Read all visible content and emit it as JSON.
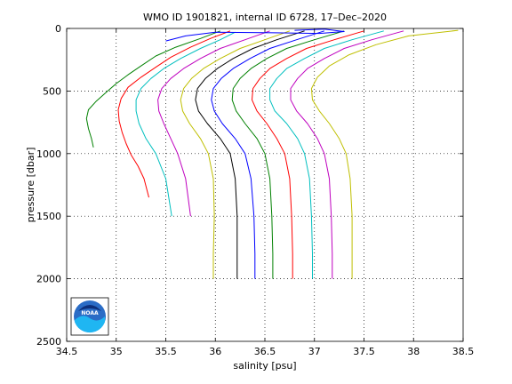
{
  "chart_data": {
    "type": "line",
    "title": "WMO ID 1901821, internal ID 6728, 17–Dec–2020",
    "xlabel": "salinity [psu]",
    "ylabel": "pressure [dbar]",
    "xlim": [
      34.5,
      38.5
    ],
    "ylim": [
      0,
      2500
    ],
    "y_reversed": true,
    "grid": true,
    "x_ticks": [
      34.5,
      35,
      35.5,
      36,
      36.5,
      37,
      37.5,
      38,
      38.5
    ],
    "x_tick_labels": [
      "34.5",
      "35",
      "35.5",
      "36",
      "36.5",
      "37",
      "37.5",
      "38",
      "38.5"
    ],
    "y_ticks": [
      0,
      500,
      1000,
      1500,
      2000,
      2500
    ],
    "y_tick_labels": [
      "0",
      "500",
      "1000",
      "1500",
      "2000",
      "2500"
    ],
    "series": [
      {
        "color": "#008000",
        "x": [
          36.05,
          35.85,
          35.6,
          35.4,
          35.25,
          35.12,
          35.0,
          34.9,
          34.8,
          34.72,
          34.7,
          34.72,
          34.75,
          34.77
        ],
        "y": [
          20,
          80,
          150,
          220,
          300,
          370,
          440,
          510,
          580,
          650,
          720,
          800,
          880,
          950
        ]
      },
      {
        "color": "#ff0000",
        "x": [
          36.15,
          35.95,
          35.75,
          35.55,
          35.4,
          35.25,
          35.12,
          35.05,
          35.02,
          35.03,
          35.06,
          35.1,
          35.15,
          35.22,
          35.28,
          35.33
        ],
        "y": [
          20,
          80,
          150,
          230,
          310,
          390,
          470,
          560,
          650,
          740,
          830,
          920,
          1010,
          1100,
          1200,
          1350
        ]
      },
      {
        "color": "#00bfbf",
        "x": [
          36.2,
          36.05,
          35.85,
          35.65,
          35.48,
          35.35,
          35.25,
          35.2,
          35.2,
          35.23,
          35.3,
          35.4,
          35.5,
          35.56
        ],
        "y": [
          30,
          90,
          160,
          240,
          320,
          400,
          480,
          570,
          660,
          760,
          880,
          1000,
          1200,
          1500
        ]
      },
      {
        "color": "#bf00bf",
        "x": [
          36.55,
          36.3,
          36.05,
          35.85,
          35.68,
          35.55,
          35.46,
          35.42,
          35.43,
          35.48,
          35.55,
          35.62,
          35.7,
          35.75
        ],
        "y": [
          20,
          90,
          160,
          240,
          320,
          400,
          480,
          570,
          660,
          760,
          880,
          1000,
          1200,
          1500
        ]
      },
      {
        "color": "#bfbf00",
        "x": [
          36.75,
          36.5,
          36.25,
          36.05,
          35.88,
          35.76,
          35.68,
          35.65,
          35.67,
          35.74,
          35.85,
          35.93,
          35.98,
          35.99,
          35.98,
          35.98
        ],
        "y": [
          20,
          90,
          160,
          240,
          320,
          400,
          480,
          570,
          660,
          760,
          880,
          1000,
          1200,
          1500,
          1800,
          2000
        ]
      },
      {
        "color": "#000000",
        "x": [
          36.9,
          36.62,
          36.38,
          36.18,
          36.02,
          35.9,
          35.82,
          35.8,
          35.83,
          35.92,
          36.05,
          36.15,
          36.2,
          36.22,
          36.22,
          36.22
        ],
        "y": [
          20,
          90,
          160,
          240,
          320,
          400,
          480,
          570,
          660,
          760,
          880,
          1000,
          1200,
          1500,
          1800,
          2000
        ]
      },
      {
        "color": "#0000ff",
        "x": [
          37.1,
          36.82,
          36.55,
          36.35,
          36.18,
          36.06,
          35.98,
          35.96,
          35.99,
          36.07,
          36.2,
          36.3,
          36.36,
          36.39,
          36.4,
          36.4
        ],
        "y": [
          20,
          90,
          160,
          240,
          320,
          400,
          480,
          570,
          660,
          760,
          880,
          1000,
          1200,
          1500,
          1800,
          2000
        ]
      },
      {
        "color": "#008000",
        "x": [
          37.3,
          37.0,
          36.72,
          36.52,
          36.36,
          36.25,
          36.18,
          36.17,
          36.21,
          36.3,
          36.42,
          36.5,
          36.55,
          36.57,
          36.58,
          36.58
        ],
        "y": [
          20,
          90,
          160,
          240,
          320,
          400,
          480,
          570,
          660,
          760,
          880,
          1000,
          1200,
          1500,
          1800,
          2000
        ]
      },
      {
        "color": "#ff0000",
        "x": [
          37.5,
          37.2,
          36.92,
          36.72,
          36.55,
          36.45,
          36.38,
          36.37,
          36.42,
          36.52,
          36.62,
          36.7,
          36.75,
          36.77,
          36.78,
          36.78
        ],
        "y": [
          20,
          90,
          160,
          240,
          320,
          400,
          480,
          570,
          660,
          760,
          880,
          1000,
          1200,
          1500,
          1800,
          2000
        ]
      },
      {
        "color": "#00bfbf",
        "x": [
          37.7,
          37.38,
          37.1,
          36.9,
          36.72,
          36.62,
          36.55,
          36.55,
          36.6,
          36.72,
          36.83,
          36.9,
          36.95,
          36.97,
          36.98,
          36.98
        ],
        "y": [
          20,
          90,
          160,
          240,
          320,
          400,
          480,
          570,
          660,
          760,
          880,
          1000,
          1200,
          1500,
          1800,
          2000
        ]
      },
      {
        "color": "#bf00bf",
        "x": [
          37.9,
          37.58,
          37.3,
          37.1,
          36.93,
          36.83,
          36.76,
          36.76,
          36.82,
          36.93,
          37.03,
          37.1,
          37.15,
          37.17,
          37.18,
          37.18
        ],
        "y": [
          20,
          90,
          160,
          240,
          320,
          400,
          480,
          570,
          660,
          760,
          880,
          1000,
          1200,
          1500,
          1800,
          2000
        ]
      },
      {
        "color": "#bfbf00",
        "x": [
          38.45,
          37.95,
          37.62,
          37.35,
          37.15,
          37.03,
          36.97,
          36.98,
          37.05,
          37.15,
          37.25,
          37.32,
          37.36,
          37.38,
          37.38,
          37.38
        ],
        "y": [
          15,
          60,
          130,
          210,
          300,
          390,
          480,
          570,
          660,
          760,
          880,
          1000,
          1200,
          1500,
          1800,
          2000
        ]
      },
      {
        "color": "#0000ff",
        "x": [
          36.8,
          37.1,
          37.3,
          37.05,
          36.6,
          36.0,
          35.7,
          35.5
        ],
        "y": [
          15,
          5,
          25,
          40,
          35,
          30,
          60,
          100
        ]
      }
    ],
    "logo": {
      "text": "NOAA"
    }
  }
}
